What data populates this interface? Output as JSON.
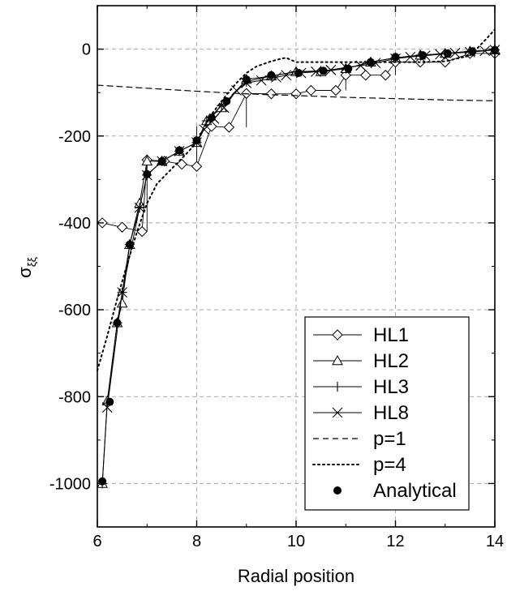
{
  "chart_data": {
    "type": "line",
    "xlabel": "Radial position",
    "ylabel": "σ",
    "ylabel_subscript": "ξξ",
    "xlim": [
      6,
      14
    ],
    "ylim": [
      -1100,
      100
    ],
    "x_ticks": [
      6,
      8,
      10,
      12,
      14
    ],
    "y_ticks": [
      0,
      -200,
      -400,
      -600,
      -800,
      -1000
    ],
    "x_tick_labels": [
      "6",
      "8",
      "10",
      "12",
      "14"
    ],
    "y_tick_labels": [
      "0",
      "-200",
      "-400",
      "-600",
      "-800",
      "-1000"
    ],
    "grid": true,
    "legend_position": "bottom-right",
    "series": [
      {
        "name": "HL1",
        "style": "step-diamond",
        "marker_x": [
          6.1,
          6.5,
          6.9,
          7.0,
          7.35,
          7.7,
          8.0,
          8.3,
          8.65,
          9.0,
          9.5,
          10.0,
          10.3,
          10.8,
          11.0,
          11.4,
          11.8,
          12.0,
          12.5,
          13.0,
          13.5,
          14.0
        ],
        "values": [
          -400,
          -410,
          -420,
          -255,
          -258,
          -265,
          -270,
          -178,
          -180,
          -102,
          -103,
          -103,
          -95,
          -95,
          -60,
          -60,
          -60,
          -30,
          -30,
          -30,
          -10,
          -10
        ],
        "jump_x": [
          7.0,
          8.0,
          9.0,
          10.0,
          11.0,
          12.0,
          13.0
        ],
        "jump_from": [
          -420,
          -270,
          -180,
          -103,
          -95,
          -60,
          -30
        ],
        "jump_to": [
          -255,
          -178,
          -103,
          -95,
          -60,
          -30,
          -10
        ]
      },
      {
        "name": "HL2",
        "style": "line-triangle",
        "marker_x": [
          6.1,
          6.2,
          6.4,
          6.5,
          6.65,
          6.85,
          7.0,
          7.3,
          7.65,
          8.0,
          8.2,
          8.5,
          9.0,
          9.5,
          10.0,
          10.5,
          11.0,
          11.5,
          12.0,
          12.5,
          13.0,
          13.5,
          14.0
        ],
        "values": [
          -1000,
          -810,
          -630,
          -585,
          -450,
          -355,
          -258,
          -258,
          -235,
          -215,
          -165,
          -135,
          -70,
          -62,
          -52,
          -52,
          -45,
          -30,
          -20,
          -14,
          -10,
          -5,
          -2
        ]
      },
      {
        "name": "HL3",
        "style": "line-plus",
        "marker_x": [
          6.1,
          6.2,
          6.4,
          6.5,
          6.65,
          6.85,
          7.0,
          7.3,
          7.65,
          8.0,
          8.2,
          8.5,
          9.0,
          9.5,
          10.0,
          10.5,
          11.0,
          11.5,
          12.0,
          12.5,
          13.0,
          13.5,
          14.0
        ],
        "values": [
          -1000,
          -815,
          -630,
          -560,
          -450,
          -365,
          -290,
          -258,
          -235,
          -215,
          -165,
          -130,
          -75,
          -62,
          -52,
          -50,
          -45,
          -30,
          -20,
          -14,
          -10,
          -5,
          -2
        ]
      },
      {
        "name": "HL8",
        "style": "line-x",
        "marker_x": [
          6.2,
          6.5,
          6.85,
          7.0,
          7.3,
          7.65,
          8.0,
          8.15,
          8.35,
          8.55,
          8.8,
          9.0,
          9.3,
          9.6,
          9.8,
          10.1,
          10.4,
          10.7,
          11.0,
          11.3,
          11.6,
          12.0,
          12.3,
          12.6,
          12.9,
          13.2,
          13.5,
          13.8,
          14.0
        ],
        "values": [
          -825,
          -560,
          -365,
          -290,
          -258,
          -235,
          -215,
          -185,
          -160,
          -135,
          -95,
          -78,
          -72,
          -65,
          -60,
          -55,
          -52,
          -48,
          -42,
          -38,
          -32,
          -22,
          -18,
          -15,
          -12,
          -9,
          -7,
          -4,
          -2
        ]
      },
      {
        "name": "p=1",
        "style": "dashed",
        "x": [
          6,
          7,
          8,
          9,
          10,
          11,
          12,
          13,
          14
        ],
        "values": [
          -83,
          -90,
          -97,
          -103,
          -107,
          -111,
          -114,
          -117,
          -119
        ]
      },
      {
        "name": "p=4",
        "style": "dotted",
        "x": [
          6.0,
          6.2,
          6.4,
          6.6,
          6.8,
          7.0,
          7.2,
          7.5,
          7.8,
          8.0,
          8.3,
          8.6,
          8.8,
          9.0,
          9.2,
          9.5,
          9.7,
          9.8,
          10.0,
          10.5,
          11.0,
          11.5,
          12.0,
          12.5,
          13.0,
          13.5,
          13.8,
          14.0
        ],
        "values": [
          -740,
          -660,
          -575,
          -495,
          -420,
          -355,
          -310,
          -275,
          -240,
          -215,
          -150,
          -105,
          -78,
          -55,
          -40,
          -28,
          -22,
          -20,
          -30,
          -30,
          -30,
          -30,
          -30,
          -30,
          -28,
          -15,
          20,
          45
        ]
      },
      {
        "name": "Analytical",
        "style": "markers-filled-circle",
        "x": [
          6.1,
          6.25,
          6.4,
          6.65,
          7.0,
          7.3,
          7.65,
          8.0,
          8.3,
          8.6,
          9.0,
          9.5,
          10.05,
          10.55,
          11.05,
          11.5,
          12.0,
          12.55,
          13.05,
          13.55,
          14.0
        ],
        "values": [
          -995,
          -812,
          -630,
          -450,
          -288,
          -258,
          -233,
          -210,
          -158,
          -120,
          -70,
          -60,
          -55,
          -50,
          -45,
          -30,
          -18,
          -14,
          -10,
          -5,
          -2
        ]
      }
    ]
  }
}
